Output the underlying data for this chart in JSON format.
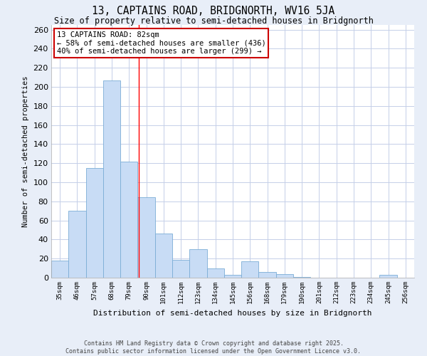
{
  "title": "13, CAPTAINS ROAD, BRIDGNORTH, WV16 5JA",
  "subtitle": "Size of property relative to semi-detached houses in Bridgnorth",
  "xlabel": "Distribution of semi-detached houses by size in Bridgnorth",
  "ylabel": "Number of semi-detached properties",
  "categories": [
    "35sqm",
    "46sqm",
    "57sqm",
    "68sqm",
    "79sqm",
    "90sqm",
    "101sqm",
    "112sqm",
    "123sqm",
    "134sqm",
    "145sqm",
    "156sqm",
    "168sqm",
    "179sqm",
    "190sqm",
    "201sqm",
    "212sqm",
    "223sqm",
    "234sqm",
    "245sqm",
    "256sqm"
  ],
  "values": [
    18,
    70,
    115,
    207,
    122,
    84,
    46,
    19,
    30,
    10,
    3,
    17,
    6,
    4,
    1,
    0,
    0,
    0,
    0,
    3,
    0
  ],
  "bar_color": "#c8dcf5",
  "bar_edge_color": "#7badd6",
  "grid_color": "#c5cfe8",
  "background_color": "#e8eef8",
  "plot_bg_color": "#ffffff",
  "red_line_x": 4.55,
  "annotation_text": "13 CAPTAINS ROAD: 82sqm\n← 58% of semi-detached houses are smaller (436)\n40% of semi-detached houses are larger (299) →",
  "annotation_box_color": "#ffffff",
  "annotation_box_edge": "#cc0000",
  "ylim": [
    0,
    265
  ],
  "yticks": [
    0,
    20,
    40,
    60,
    80,
    100,
    120,
    140,
    160,
    180,
    200,
    220,
    240,
    260
  ],
  "footer_line1": "Contains HM Land Registry data © Crown copyright and database right 2025.",
  "footer_line2": "Contains public sector information licensed under the Open Government Licence v3.0."
}
